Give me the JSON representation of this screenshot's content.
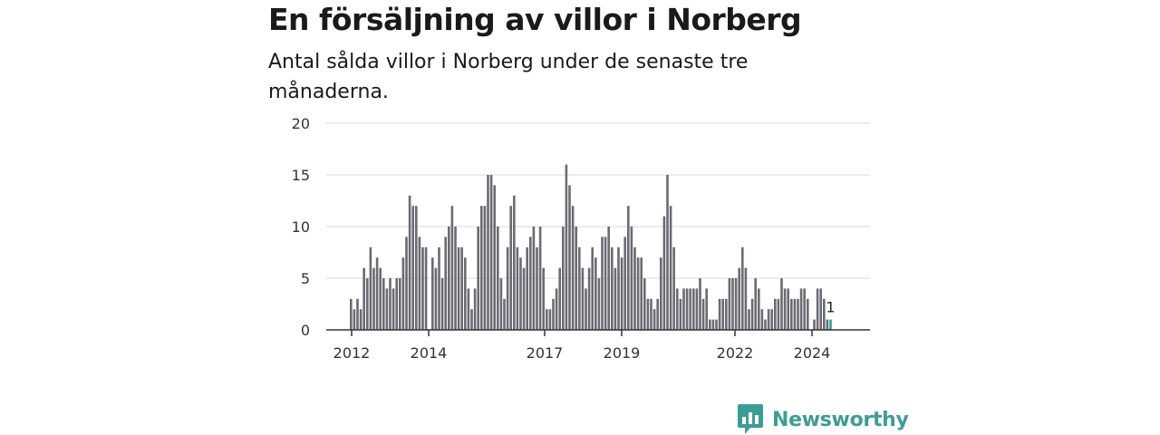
{
  "header": {
    "title": "En försäljning av villor i Norberg",
    "subtitle": "Antal sålda villor i Norberg under de senaste tre månaderna."
  },
  "brand": {
    "name": "Newsworthy"
  },
  "colors": {
    "bar": "#6b6b73",
    "highlight": "#2aa198",
    "grid": "#d9d9d9",
    "axis": "#333333",
    "brand": "#3d9d95"
  },
  "chart_data": {
    "type": "bar",
    "title": "En försäljning av villor i Norberg",
    "subtitle": "Antal sålda villor i Norberg under de senaste tre månaderna.",
    "xlabel": "",
    "ylabel": "",
    "ylim": [
      0,
      20
    ],
    "yticks": [
      "0",
      "5",
      "10",
      "15",
      "20"
    ],
    "xticks": [
      "2012",
      "2014",
      "2017",
      "2019",
      "2022",
      "2024"
    ],
    "grid": true,
    "highlight_last": true,
    "last_value_label": "1",
    "values": [
      3,
      2,
      3,
      2,
      6,
      5,
      8,
      6,
      7,
      6,
      5,
      4,
      5,
      4,
      5,
      5,
      7,
      9,
      13,
      12,
      12,
      9,
      8,
      8,
      0,
      7,
      6,
      8,
      5,
      9,
      10,
      12,
      10,
      8,
      8,
      7,
      4,
      2,
      4,
      10,
      12,
      12,
      15,
      15,
      14,
      10,
      5,
      3,
      8,
      12,
      13,
      8,
      7,
      6,
      8,
      9,
      10,
      8,
      10,
      6,
      2,
      2,
      3,
      4,
      6,
      10,
      16,
      14,
      12,
      10,
      8,
      6,
      4,
      6,
      8,
      7,
      5,
      9,
      9,
      10,
      8,
      6,
      8,
      7,
      9,
      12,
      10,
      8,
      7,
      7,
      5,
      3,
      3,
      2,
      3,
      7,
      11,
      15,
      12,
      8,
      4,
      3,
      4,
      4,
      4,
      4,
      4,
      5,
      3,
      4,
      1,
      1,
      1,
      3,
      3,
      3,
      5,
      5,
      5,
      6,
      8,
      6,
      2,
      3,
      5,
      4,
      2,
      1,
      2,
      2,
      3,
      3,
      5,
      4,
      4,
      3,
      3,
      3,
      4,
      4,
      3,
      0,
      1,
      4,
      4,
      3,
      1,
      1
    ]
  }
}
